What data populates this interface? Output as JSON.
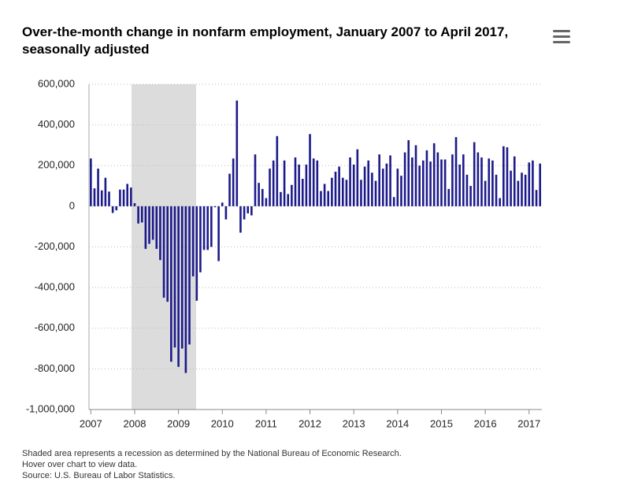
{
  "chart_data": {
    "type": "bar",
    "title_lines": [
      "Over-the-month change in nonfarm employment, January 2007 to April 2017,",
      "seasonally adjusted"
    ],
    "categories": [
      "2007",
      null,
      null,
      null,
      null,
      null,
      null,
      null,
      null,
      null,
      null,
      null,
      "2008",
      null,
      null,
      null,
      null,
      null,
      null,
      null,
      null,
      null,
      null,
      null,
      "2009",
      null,
      null,
      null,
      null,
      null,
      null,
      null,
      null,
      null,
      null,
      null,
      "2010",
      null,
      null,
      null,
      null,
      null,
      null,
      null,
      null,
      null,
      null,
      null,
      "2011",
      null,
      null,
      null,
      null,
      null,
      null,
      null,
      null,
      null,
      null,
      null,
      "2012",
      null,
      null,
      null,
      null,
      null,
      null,
      null,
      null,
      null,
      null,
      null,
      "2013",
      null,
      null,
      null,
      null,
      null,
      null,
      null,
      null,
      null,
      null,
      null,
      "2014",
      null,
      null,
      null,
      null,
      null,
      null,
      null,
      null,
      null,
      null,
      null,
      "2015",
      null,
      null,
      null,
      null,
      null,
      null,
      null,
      null,
      null,
      null,
      null,
      "2016",
      null,
      null,
      null,
      null,
      null,
      null,
      null,
      null,
      null,
      null,
      null,
      "2017",
      null,
      null,
      null
    ],
    "values": [
      235000,
      88000,
      185000,
      78000,
      140000,
      72000,
      -33000,
      -20000,
      82000,
      82000,
      110000,
      92000,
      15000,
      -85000,
      -80000,
      -210000,
      -185000,
      -165000,
      -210000,
      -265000,
      -450000,
      -470000,
      -765000,
      -695000,
      -790000,
      -700000,
      -820000,
      -680000,
      -345000,
      -465000,
      -325000,
      -215000,
      -215000,
      -200000,
      -5000,
      -270000,
      18000,
      -65000,
      160000,
      235000,
      520000,
      -130000,
      -65000,
      -35000,
      -45000,
      255000,
      115000,
      85000,
      40000,
      185000,
      225000,
      345000,
      70000,
      225000,
      60000,
      105000,
      240000,
      205000,
      135000,
      205000,
      355000,
      235000,
      225000,
      75000,
      110000,
      75000,
      140000,
      170000,
      195000,
      140000,
      130000,
      240000,
      205000,
      280000,
      130000,
      195000,
      225000,
      165000,
      125000,
      255000,
      185000,
      210000,
      250000,
      45000,
      185000,
      150000,
      265000,
      325000,
      240000,
      300000,
      200000,
      225000,
      275000,
      220000,
      310000,
      265000,
      230000,
      230000,
      85000,
      255000,
      340000,
      205000,
      255000,
      155000,
      100000,
      315000,
      265000,
      240000,
      125000,
      235000,
      225000,
      155000,
      40000,
      295000,
      290000,
      175000,
      245000,
      125000,
      165000,
      155000,
      215000,
      225000,
      80000,
      210000
    ],
    "color": "#1c1a8a",
    "ylim": [
      -1000000,
      600000
    ],
    "yticks": [
      {
        "value": -1000000,
        "label": "-1,000,000"
      },
      {
        "value": -800000,
        "label": "-800,000"
      },
      {
        "value": -600000,
        "label": "-600,000"
      },
      {
        "value": -400000,
        "label": "-400,000"
      },
      {
        "value": -200000,
        "label": "-200,000"
      },
      0,
      {
        "value": 200000,
        "label": "200,000"
      },
      {
        "value": 400000,
        "label": "400,000"
      },
      {
        "value": 600000,
        "label": "600,000"
      }
    ],
    "grid": true,
    "notes": [
      "Shaded area represents a recession as determined by the National Bureau of Economic Research.",
      "Hover over chart to view data.",
      "Source: U.S. Bureau of Labor Statistics."
    ]
  }
}
